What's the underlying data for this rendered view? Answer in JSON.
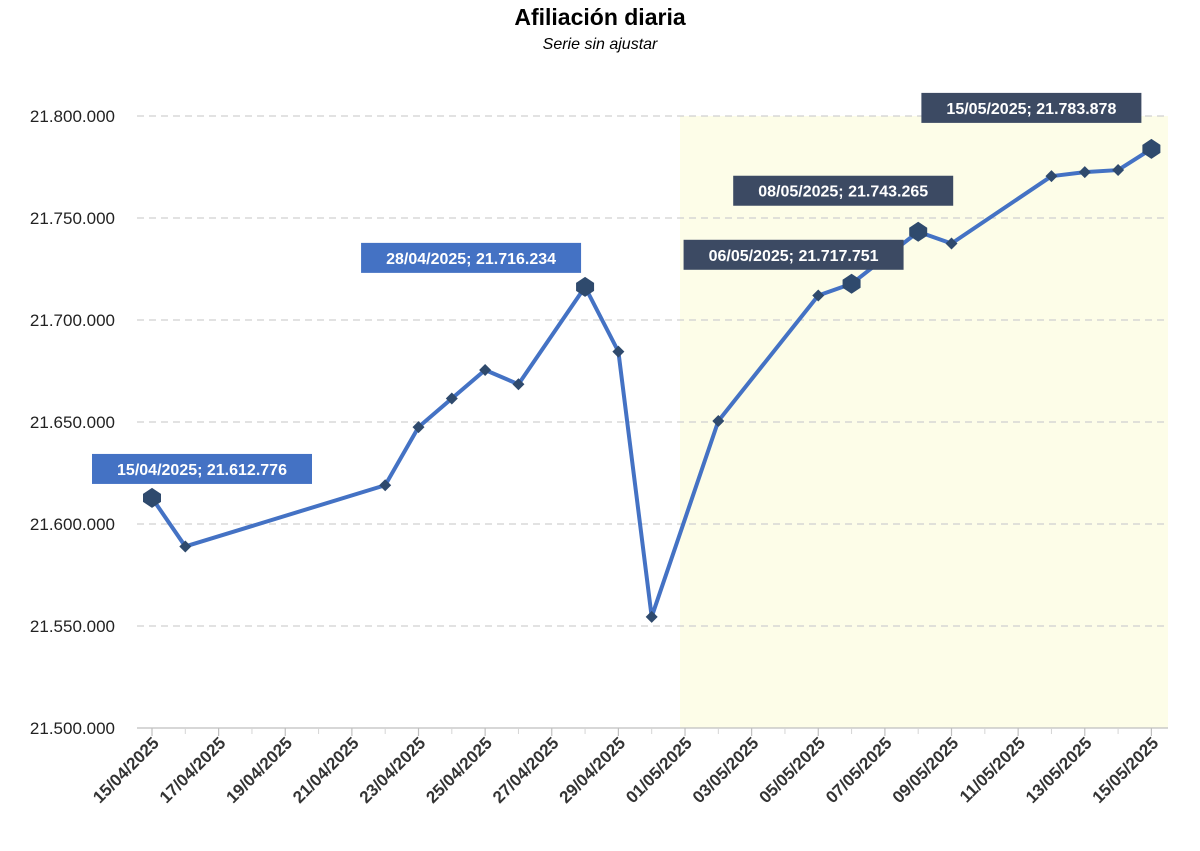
{
  "chart_data": {
    "type": "line",
    "title": "Afiliación diaria",
    "subtitle": "Serie sin ajustar",
    "xlabel": "",
    "ylabel": "",
    "ylim": [
      21500000,
      21800000
    ],
    "y_ticks": [
      "21.500.000",
      "21.550.000",
      "21.600.000",
      "21.650.000",
      "21.700.000",
      "21.750.000",
      "21.800.000"
    ],
    "y_tick_values": [
      21500000,
      21550000,
      21600000,
      21650000,
      21700000,
      21750000,
      21800000
    ],
    "x_ticks": [
      "15/04/2025",
      "17/04/2025",
      "19/04/2025",
      "21/04/2025",
      "23/04/2025",
      "25/04/2025",
      "27/04/2025",
      "29/04/2025",
      "01/05/2025",
      "03/05/2025",
      "05/05/2025",
      "07/05/2025",
      "09/05/2025",
      "11/05/2025",
      "13/05/2025",
      "15/05/2025"
    ],
    "x_range": [
      "15/04/2025",
      "15/05/2025"
    ],
    "grid": true,
    "highlight_region": {
      "from": "01/05/2025",
      "to": "15/05/2025",
      "color": "#fdfde8"
    },
    "series": [
      {
        "color": "#4472c4",
        "points": [
          {
            "x": "15/04/2025",
            "y": 21612776
          },
          {
            "x": "16/04/2025",
            "y": 21589000
          },
          {
            "x": "22/04/2025",
            "y": 21619000
          },
          {
            "x": "23/04/2025",
            "y": 21647500
          },
          {
            "x": "24/04/2025",
            "y": 21661500
          },
          {
            "x": "25/04/2025",
            "y": 21675500
          },
          {
            "x": "26/04/2025",
            "y": 21668500
          },
          {
            "x": "28/04/2025",
            "y": 21716234
          },
          {
            "x": "29/04/2025",
            "y": 21684500
          },
          {
            "x": "30/04/2025",
            "y": 21554500
          },
          {
            "x": "02/05/2025",
            "y": 21650500
          },
          {
            "x": "05/05/2025",
            "y": 21712000
          },
          {
            "x": "06/05/2025",
            "y": 21717751
          },
          {
            "x": "08/05/2025",
            "y": 21743265
          },
          {
            "x": "09/05/2025",
            "y": 21737500
          },
          {
            "x": "12/05/2025",
            "y": 21770500
          },
          {
            "x": "13/05/2025",
            "y": 21772500
          },
          {
            "x": "14/05/2025",
            "y": 21773500
          },
          {
            "x": "15/05/2025",
            "y": 21783878
          }
        ]
      }
    ],
    "annotations": [
      {
        "text": "15/04/2025; 21.612.776",
        "x": "15/04/2025",
        "y": 21612776,
        "style": "light"
      },
      {
        "text": "28/04/2025; 21.716.234",
        "x": "28/04/2025",
        "y": 21716234,
        "style": "light"
      },
      {
        "text": "06/05/2025; 21.717.751",
        "x": "06/05/2025",
        "y": 21717751,
        "style": "dark"
      },
      {
        "text": "08/05/2025; 21.743.265",
        "x": "08/05/2025",
        "y": 21743265,
        "style": "dark"
      },
      {
        "text": "15/05/2025; 21.783.878",
        "x": "15/05/2025",
        "y": 21783878,
        "style": "dark"
      }
    ],
    "colors": {
      "line": "#4472c4",
      "marker": "#2f4a6d",
      "callout_light": "#4472c4",
      "callout_dark": "#3c4a63",
      "grid": "#d0d0d0",
      "highlight": "#fdfde8"
    }
  }
}
